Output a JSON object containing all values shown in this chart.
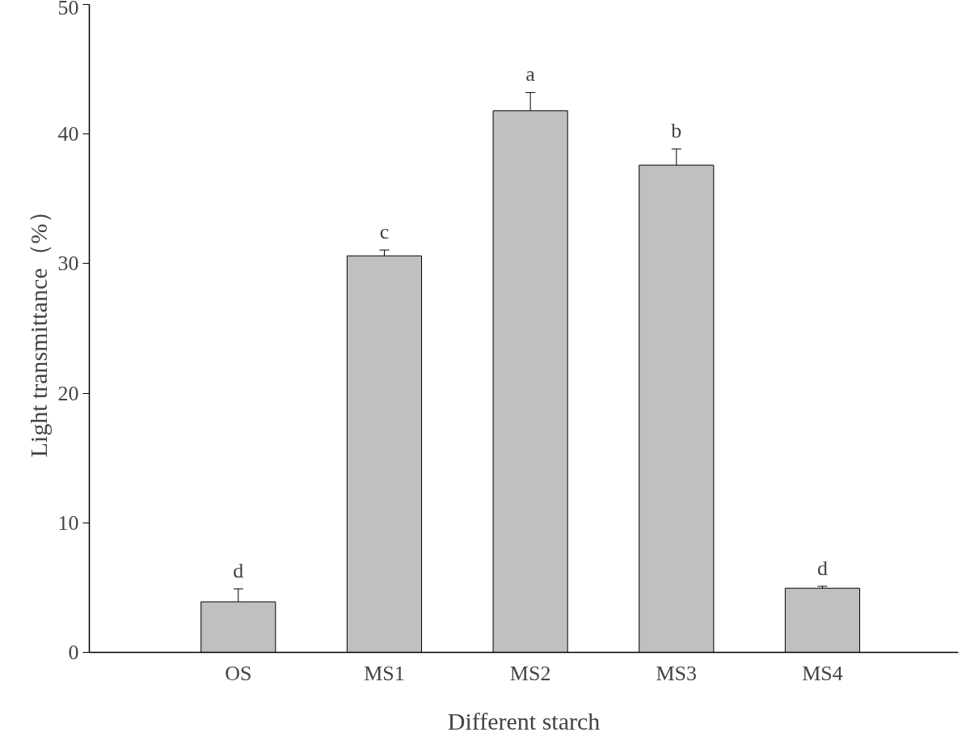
{
  "chart_data": {
    "type": "bar",
    "xlabel": "Different starch",
    "ylabel": "Light transmittance（%）",
    "categories": [
      "OS",
      "MS1",
      "MS2",
      "MS3",
      "MS4"
    ],
    "values": [
      3.9,
      30.6,
      41.8,
      37.6,
      4.95
    ],
    "errors": [
      1.0,
      0.45,
      1.4,
      1.25,
      0.15
    ],
    "color": "#c0c0c0",
    "ylim": [
      0,
      50
    ],
    "yticks": [
      0,
      10,
      20,
      30,
      40,
      50
    ],
    "grid": false,
    "annotations": [
      "d",
      "c",
      "a",
      "b",
      "d"
    ]
  }
}
